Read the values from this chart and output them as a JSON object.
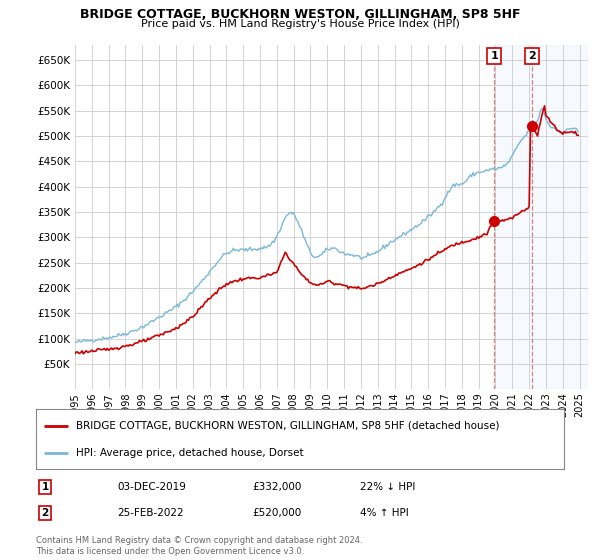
{
  "title": "BRIDGE COTTAGE, BUCKHORN WESTON, GILLINGHAM, SP8 5HF",
  "subtitle": "Price paid vs. HM Land Registry's House Price Index (HPI)",
  "hpi_label": "HPI: Average price, detached house, Dorset",
  "property_label": "BRIDGE COTTAGE, BUCKHORN WESTON, GILLINGHAM, SP8 5HF (detached house)",
  "annotation1_date": "03-DEC-2019",
  "annotation1_price": "£332,000",
  "annotation1_hpi": "22% ↓ HPI",
  "annotation2_date": "25-FEB-2022",
  "annotation2_price": "£520,000",
  "annotation2_hpi": "4% ↑ HPI",
  "footnote": "Contains HM Land Registry data © Crown copyright and database right 2024.\nThis data is licensed under the Open Government Licence v3.0.",
  "hpi_color": "#7ab8d9",
  "property_color": "#cc0000",
  "background_color": "#ffffff",
  "grid_color": "#cccccc",
  "ylim": [
    0,
    680000
  ],
  "yticks": [
    0,
    50000,
    100000,
    150000,
    200000,
    250000,
    300000,
    350000,
    400000,
    450000,
    500000,
    550000,
    600000,
    650000
  ],
  "xlim_start": 1995.0,
  "xlim_end": 2025.5,
  "sale1_x": 2019.917,
  "sale1_y": 332000,
  "sale2_x": 2022.167,
  "sale2_y": 520000,
  "vline1_x": 2019.917,
  "vline2_x": 2022.167,
  "span_start": 2019.917,
  "span_end": 2025.5
}
